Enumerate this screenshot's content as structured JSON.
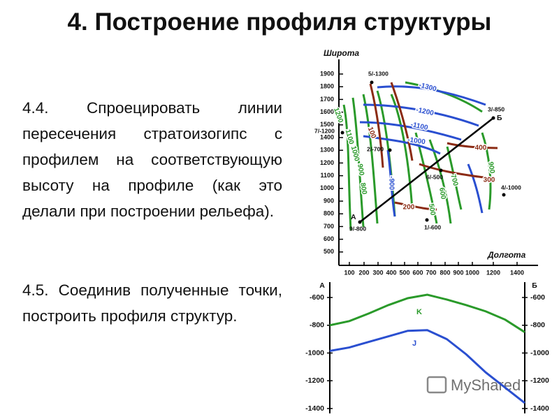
{
  "title": "4. Построение профиля структуры",
  "paragraphs": [
    "4.4. Спроецировать линии пересечения стратоизогипс с профилем на соответствующую высоту на профиле (как это делали при построении рельефа).",
    "4.5. Соединив полученные точки, построить профиля структур."
  ],
  "map": {
    "y_axis_label": "Широта",
    "x_axis_label": "Долгота",
    "yticks": [
      1900,
      1800,
      1700,
      1600,
      1500,
      1400,
      1300,
      1200,
      1100,
      1000,
      900,
      800,
      700,
      600,
      500
    ],
    "xticks": [
      100,
      200,
      300,
      400,
      500,
      600,
      700,
      800,
      900,
      1000,
      1200,
      1400
    ],
    "wells": [
      "5/-1300",
      "3/-850",
      "7/-1200",
      "2/-700",
      "6/-500",
      "4/-1000",
      "9/-800",
      "1/-600"
    ],
    "section_ends": [
      "А",
      "Б"
    ],
    "contour_labels": [
      -1300,
      -1200,
      -1100,
      -1000,
      -900,
      1200,
      1100,
      1000,
      900,
      800,
      700,
      600,
      500,
      900,
      100,
      400,
      300,
      200
    ]
  },
  "chart_data": {
    "type": "line",
    "left_label": "А",
    "right_label": "Б",
    "categories": [
      null,
      null,
      null,
      null,
      null,
      null,
      null,
      null,
      null,
      null,
      null
    ],
    "series": [
      {
        "name": "K",
        "color": "#2a9a2a",
        "values": [
          -800,
          -770,
          -715,
          -655,
          -605,
          -580,
          -615,
          -655,
          -700,
          -760,
          -850
        ]
      },
      {
        "name": "J",
        "color": "#2a4fd0",
        "values": [
          -985,
          -960,
          -920,
          -880,
          -840,
          -835,
          -900,
          -1010,
          -1140,
          -1250,
          -1360
        ]
      }
    ],
    "ylim": [
      -1400,
      -600
    ],
    "yticks": [
      -600,
      -800,
      -1000,
      -1200,
      -1400
    ]
  },
  "watermark": "MyShared"
}
